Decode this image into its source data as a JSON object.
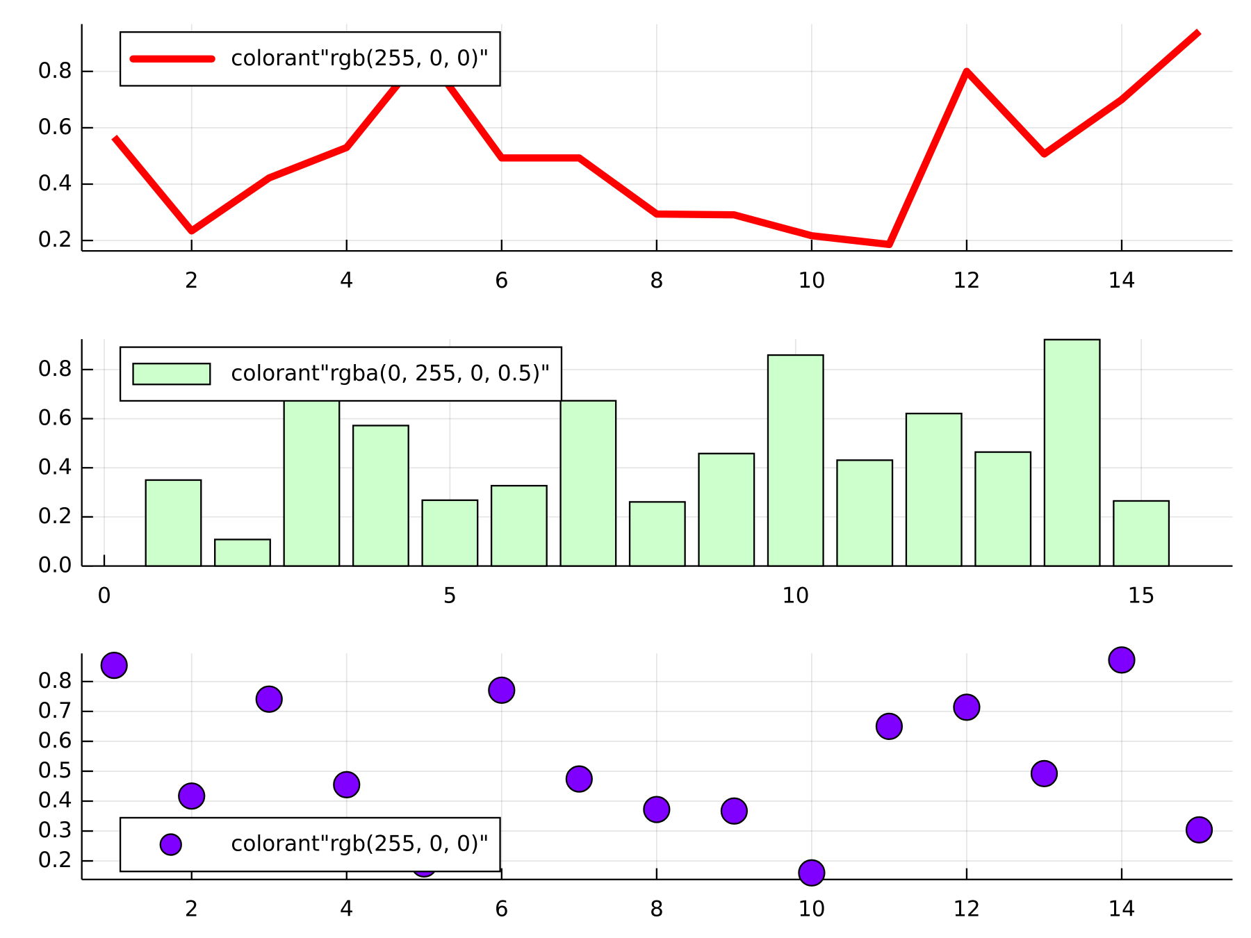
{
  "chart_data": [
    {
      "type": "line",
      "legend": "top left",
      "grid": true,
      "x": [
        1,
        2,
        3,
        4,
        5,
        6,
        7,
        8,
        9,
        10,
        11,
        12,
        13,
        14,
        15
      ],
      "series": [
        {
          "name": "colorant\"rgb(255, 0, 0)\"",
          "color": "#ff0000",
          "values": [
            0.567,
            0.234,
            0.422,
            0.53,
            0.87,
            0.493,
            0.493,
            0.294,
            0.291,
            0.217,
            0.186,
            0.8,
            0.507,
            0.7,
            0.942
          ]
        }
      ],
      "xlim": [
        0.583,
        15.43
      ],
      "xticks": [
        2,
        4,
        6,
        8,
        10,
        12,
        14
      ],
      "ylim": [
        0.163,
        0.968
      ],
      "yticks": [
        {
          "value": 0.2,
          "label": "0.2"
        },
        {
          "value": 0.4,
          "label": "0.4"
        },
        {
          "value": 0.6,
          "label": "0.6"
        },
        {
          "value": 0.8,
          "label": "0.8"
        }
      ]
    },
    {
      "type": "bar",
      "legend": "top left",
      "grid": true,
      "x": [
        1,
        2,
        3,
        4,
        5,
        6,
        7,
        8,
        9,
        10,
        11,
        12,
        13,
        14,
        15
      ],
      "series": [
        {
          "name": "colorant\"rgba(0, 255, 0, 0.5)\"",
          "color": "#ccffcc",
          "values": [
            0.35,
            0.108,
            0.72,
            0.572,
            0.268,
            0.327,
            0.673,
            0.261,
            0.458,
            0.859,
            0.431,
            0.621,
            0.464,
            0.922,
            0.265
          ]
        }
      ],
      "xlim": [
        -0.325,
        16.32
      ],
      "xticks": [
        0,
        5,
        10,
        15
      ],
      "ylim": [
        0,
        0.924
      ],
      "yticks": [
        {
          "value": 0,
          "label": "0.0"
        },
        {
          "value": 0.2,
          "label": "0.2"
        },
        {
          "value": 0.4,
          "label": "0.4"
        },
        {
          "value": 0.6,
          "label": "0.6"
        },
        {
          "value": 0.8,
          "label": "0.8"
        }
      ]
    },
    {
      "type": "scatter",
      "legend": "bottom left",
      "grid": true,
      "x": [
        1,
        2,
        3,
        4,
        5,
        6,
        7,
        8,
        9,
        10,
        11,
        12,
        13,
        14,
        15
      ],
      "series": [
        {
          "name": "colorant\"rgb(255, 0, 0)\"",
          "color": "#8000ff",
          "values": [
            0.854,
            0.417,
            0.741,
            0.455,
            0.19,
            0.771,
            0.474,
            0.372,
            0.367,
            0.16,
            0.65,
            0.714,
            0.492,
            0.872,
            0.304
          ]
        }
      ],
      "xlim": [
        0.583,
        15.43
      ],
      "xticks": [
        2,
        4,
        6,
        8,
        10,
        12,
        14
      ],
      "ylim": [
        0.138,
        0.894
      ],
      "yticks": [
        {
          "value": 0.2,
          "label": "0.2"
        },
        {
          "value": 0.3,
          "label": "0.3"
        },
        {
          "value": 0.4,
          "label": "0.4"
        },
        {
          "value": 0.5,
          "label": "0.5"
        },
        {
          "value": 0.6,
          "label": "0.6"
        },
        {
          "value": 0.7,
          "label": "0.7"
        },
        {
          "value": 0.8,
          "label": "0.8"
        }
      ]
    }
  ]
}
